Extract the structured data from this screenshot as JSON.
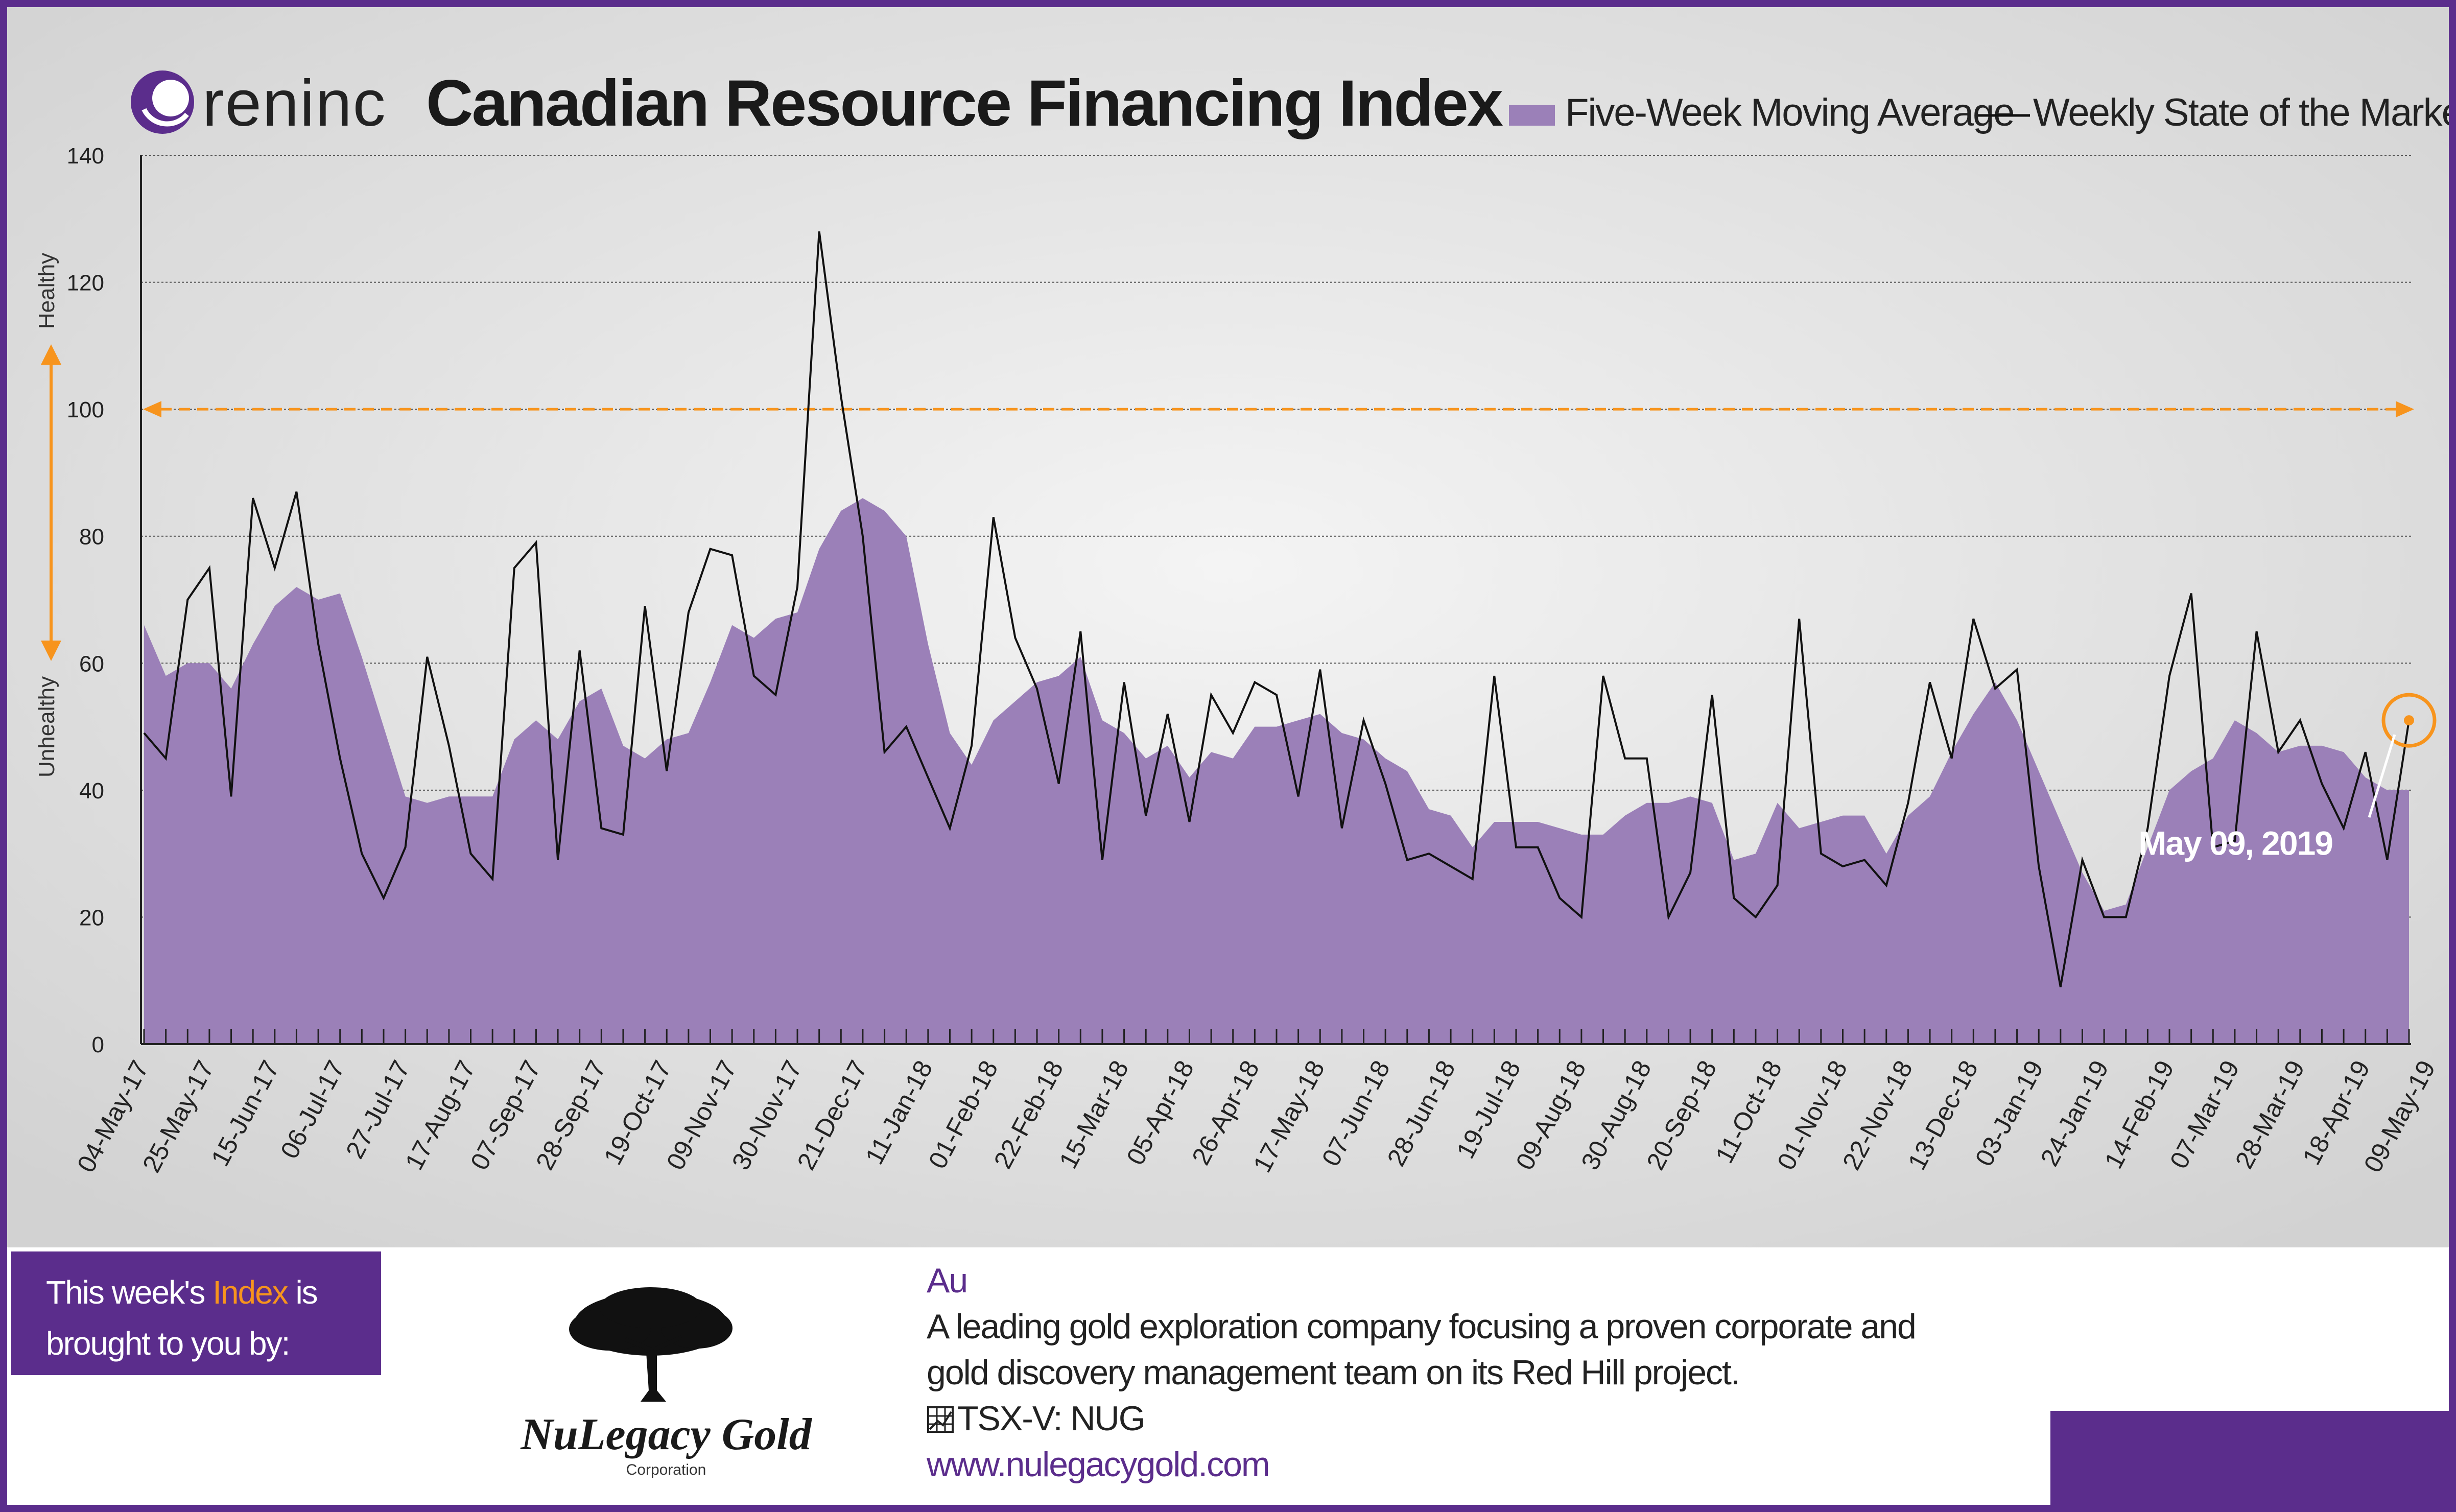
{
  "header": {
    "brand": "reninc",
    "title": "Canadian Resource Financing Index"
  },
  "legend": {
    "area_label": "Five-Week Moving Average",
    "line_label": "Weekly State of the Market"
  },
  "y_axis": {
    "healthy_label": "Healthy",
    "unhealthy_label": "Unhealthy"
  },
  "callout": {
    "date_label": "May 09, 2019"
  },
  "colors": {
    "brand_purple": "#5b2d8c",
    "area_fill": "#9b80b8",
    "orange": "#f7941d",
    "background": "#dcdcdc"
  },
  "chart_data": {
    "type": "area",
    "title": "Canadian Resource Financing Index",
    "ylim": [
      0,
      140
    ],
    "y_ticks": [
      0,
      20,
      40,
      60,
      80,
      100,
      120,
      140
    ],
    "grid": true,
    "legend_position": "top-right",
    "reference_line": 100,
    "x_tick_labels": [
      "04-May-17",
      "25-May-17",
      "15-Jun-17",
      "06-Jul-17",
      "27-Jul-17",
      "17-Aug-17",
      "07-Sep-17",
      "28-Sep-17",
      "19-Oct-17",
      "09-Nov-17",
      "30-Nov-17",
      "21-Dec-17",
      "11-Jan-18",
      "01-Feb-18",
      "22-Feb-18",
      "15-Mar-18",
      "05-Apr-18",
      "26-Apr-18",
      "17-May-18",
      "07-Jun-18",
      "28-Jun-18",
      "19-Jul-18",
      "09-Aug-18",
      "30-Aug-18",
      "20-Sep-18",
      "11-Oct-18",
      "01-Nov-18",
      "22-Nov-18",
      "13-Dec-18",
      "03-Jan-19",
      "24-Jan-19",
      "14-Feb-19",
      "07-Mar-19",
      "28-Mar-19",
      "18-Apr-19",
      "09-May-19"
    ],
    "series": [
      {
        "name": "Five-Week Moving Average",
        "kind": "area",
        "values": [
          66,
          58,
          60,
          60,
          56,
          63,
          69,
          72,
          70,
          71,
          61,
          50,
          39,
          38,
          39,
          39,
          39,
          48,
          51,
          48,
          54,
          56,
          47,
          45,
          48,
          49,
          57,
          66,
          64,
          67,
          68,
          78,
          84,
          86,
          84,
          80,
          63,
          49,
          44,
          51,
          54,
          57,
          58,
          61,
          51,
          49,
          45,
          47,
          42,
          46,
          45,
          50,
          50,
          51,
          52,
          49,
          48,
          45,
          43,
          37,
          36,
          31,
          35,
          35,
          35,
          34,
          33,
          33,
          36,
          38,
          38,
          39,
          38,
          29,
          30,
          38,
          34,
          35,
          36,
          36,
          30,
          36,
          39,
          46,
          52,
          57,
          51,
          43,
          35,
          27,
          21,
          22,
          31,
          40,
          43,
          45,
          51,
          49,
          46,
          47,
          47,
          46,
          42,
          40,
          40
        ]
      },
      {
        "name": "Weekly State of the Market",
        "kind": "line",
        "values": [
          49,
          45,
          70,
          75,
          39,
          86,
          75,
          87,
          63,
          45,
          30,
          23,
          31,
          61,
          47,
          30,
          26,
          75,
          79,
          29,
          62,
          34,
          33,
          69,
          43,
          68,
          78,
          77,
          58,
          55,
          72,
          128,
          102,
          80,
          46,
          50,
          42,
          34,
          47,
          83,
          64,
          56,
          41,
          65,
          29,
          57,
          36,
          52,
          35,
          55,
          49,
          57,
          55,
          39,
          59,
          34,
          51,
          41,
          29,
          30,
          28,
          26,
          58,
          31,
          31,
          23,
          20,
          58,
          45,
          45,
          20,
          27,
          55,
          23,
          20,
          25,
          67,
          30,
          28,
          29,
          25,
          38,
          57,
          45,
          67,
          56,
          59,
          28,
          9,
          29,
          20,
          20,
          34,
          58,
          71,
          31,
          32,
          65,
          46,
          51,
          41,
          34,
          46,
          29,
          51
        ]
      }
    ]
  },
  "sponsor": {
    "line1_prefix": "This week's ",
    "line1_accent": "Index",
    "line1_suffix": " is",
    "line2": "brought to you by:",
    "logo_name": "NuLegacy Gold",
    "logo_sub": "Corporation",
    "metal": "Au",
    "description_line1": "A leading gold exploration company focusing a proven corporate and",
    "description_line2": "gold discovery management team on its Red Hill project.",
    "ticker": "TSX-V: NUG",
    "website": "www.nulegacygold.com"
  }
}
